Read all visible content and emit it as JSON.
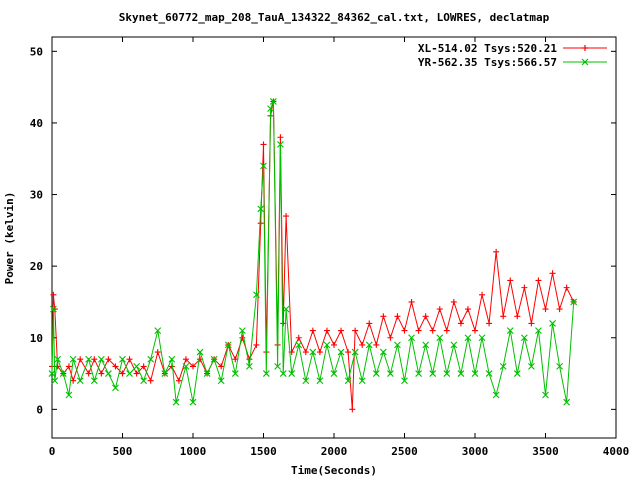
{
  "chart_data": {
    "type": "line",
    "title": "Skynet_60772_map_208_TauA_134322_84362_cal.txt, LOWRES, declatmap",
    "xlabel": "Time(Seconds)",
    "ylabel": "Power (kelvin)",
    "xlim": [
      0,
      4000
    ],
    "ylim": [
      -4,
      52
    ],
    "xticks": [
      0,
      500,
      1000,
      1500,
      2000,
      2500,
      3000,
      3500,
      4000
    ],
    "yticks": [
      0,
      10,
      20,
      30,
      40,
      50
    ],
    "grid": false,
    "legend_position": "top-right",
    "series": [
      {
        "name": "XL-514.02 Tsys:520.21",
        "color": "#ff0000",
        "marker": "plus",
        "points": [
          [
            0,
            6
          ],
          [
            10,
            16
          ],
          [
            20,
            14
          ],
          [
            40,
            6
          ],
          [
            80,
            5
          ],
          [
            120,
            6
          ],
          [
            150,
            4
          ],
          [
            200,
            7
          ],
          [
            260,
            5
          ],
          [
            300,
            7
          ],
          [
            350,
            5
          ],
          [
            400,
            7
          ],
          [
            450,
            6
          ],
          [
            500,
            5
          ],
          [
            550,
            7
          ],
          [
            600,
            5
          ],
          [
            650,
            6
          ],
          [
            700,
            4
          ],
          [
            750,
            8
          ],
          [
            800,
            5
          ],
          [
            850,
            6
          ],
          [
            900,
            4
          ],
          [
            950,
            7
          ],
          [
            1000,
            6
          ],
          [
            1050,
            7
          ],
          [
            1100,
            5
          ],
          [
            1150,
            7
          ],
          [
            1200,
            6
          ],
          [
            1250,
            9
          ],
          [
            1300,
            7
          ],
          [
            1350,
            10
          ],
          [
            1400,
            7
          ],
          [
            1450,
            9
          ],
          [
            1480,
            26
          ],
          [
            1500,
            37
          ],
          [
            1520,
            8
          ],
          [
            1550,
            41
          ],
          [
            1570,
            43
          ],
          [
            1600,
            9
          ],
          [
            1620,
            38
          ],
          [
            1640,
            12
          ],
          [
            1660,
            27
          ],
          [
            1700,
            8
          ],
          [
            1750,
            10
          ],
          [
            1800,
            8
          ],
          [
            1850,
            11
          ],
          [
            1900,
            8
          ],
          [
            1950,
            11
          ],
          [
            2000,
            9
          ],
          [
            2050,
            11
          ],
          [
            2100,
            8
          ],
          [
            2130,
            0
          ],
          [
            2150,
            11
          ],
          [
            2200,
            9
          ],
          [
            2250,
            12
          ],
          [
            2300,
            9
          ],
          [
            2350,
            13
          ],
          [
            2400,
            10
          ],
          [
            2450,
            13
          ],
          [
            2500,
            11
          ],
          [
            2550,
            15
          ],
          [
            2600,
            11
          ],
          [
            2650,
            13
          ],
          [
            2700,
            11
          ],
          [
            2750,
            14
          ],
          [
            2800,
            11
          ],
          [
            2850,
            15
          ],
          [
            2900,
            12
          ],
          [
            2950,
            14
          ],
          [
            3000,
            11
          ],
          [
            3050,
            16
          ],
          [
            3100,
            12
          ],
          [
            3150,
            22
          ],
          [
            3200,
            13
          ],
          [
            3250,
            18
          ],
          [
            3300,
            13
          ],
          [
            3350,
            17
          ],
          [
            3400,
            12
          ],
          [
            3450,
            18
          ],
          [
            3500,
            14
          ],
          [
            3550,
            19
          ],
          [
            3600,
            14
          ],
          [
            3650,
            17
          ],
          [
            3700,
            15
          ]
        ]
      },
      {
        "name": "YR-562.35 Tsys:566.57",
        "color": "#00c000",
        "marker": "cross",
        "points": [
          [
            0,
            5
          ],
          [
            10,
            14
          ],
          [
            20,
            4
          ],
          [
            40,
            7
          ],
          [
            80,
            5
          ],
          [
            120,
            2
          ],
          [
            150,
            7
          ],
          [
            200,
            4
          ],
          [
            260,
            7
          ],
          [
            300,
            4
          ],
          [
            350,
            7
          ],
          [
            400,
            5
          ],
          [
            450,
            3
          ],
          [
            500,
            7
          ],
          [
            550,
            5
          ],
          [
            600,
            6
          ],
          [
            650,
            4
          ],
          [
            700,
            7
          ],
          [
            750,
            11
          ],
          [
            800,
            5
          ],
          [
            850,
            7
          ],
          [
            880,
            1
          ],
          [
            950,
            6
          ],
          [
            1000,
            1
          ],
          [
            1050,
            8
          ],
          [
            1100,
            5
          ],
          [
            1150,
            7
          ],
          [
            1200,
            4
          ],
          [
            1250,
            9
          ],
          [
            1300,
            5
          ],
          [
            1350,
            11
          ],
          [
            1400,
            6
          ],
          [
            1450,
            16
          ],
          [
            1480,
            28
          ],
          [
            1500,
            34
          ],
          [
            1520,
            5
          ],
          [
            1550,
            42
          ],
          [
            1570,
            43
          ],
          [
            1600,
            6
          ],
          [
            1620,
            37
          ],
          [
            1640,
            5
          ],
          [
            1660,
            14
          ],
          [
            1700,
            5
          ],
          [
            1750,
            9
          ],
          [
            1800,
            4
          ],
          [
            1850,
            8
          ],
          [
            1900,
            4
          ],
          [
            1950,
            9
          ],
          [
            2000,
            5
          ],
          [
            2050,
            8
          ],
          [
            2100,
            4
          ],
          [
            2150,
            8
          ],
          [
            2200,
            4
          ],
          [
            2250,
            9
          ],
          [
            2300,
            5
          ],
          [
            2350,
            8
          ],
          [
            2400,
            5
          ],
          [
            2450,
            9
          ],
          [
            2500,
            4
          ],
          [
            2550,
            10
          ],
          [
            2600,
            5
          ],
          [
            2650,
            9
          ],
          [
            2700,
            5
          ],
          [
            2750,
            10
          ],
          [
            2800,
            5
          ],
          [
            2850,
            9
          ],
          [
            2900,
            5
          ],
          [
            2950,
            10
          ],
          [
            3000,
            5
          ],
          [
            3050,
            10
          ],
          [
            3100,
            5
          ],
          [
            3150,
            2
          ],
          [
            3200,
            6
          ],
          [
            3250,
            11
          ],
          [
            3300,
            5
          ],
          [
            3350,
            10
          ],
          [
            3400,
            6
          ],
          [
            3450,
            11
          ],
          [
            3500,
            2
          ],
          [
            3550,
            12
          ],
          [
            3600,
            6
          ],
          [
            3650,
            1
          ],
          [
            3700,
            15
          ]
        ]
      }
    ]
  }
}
